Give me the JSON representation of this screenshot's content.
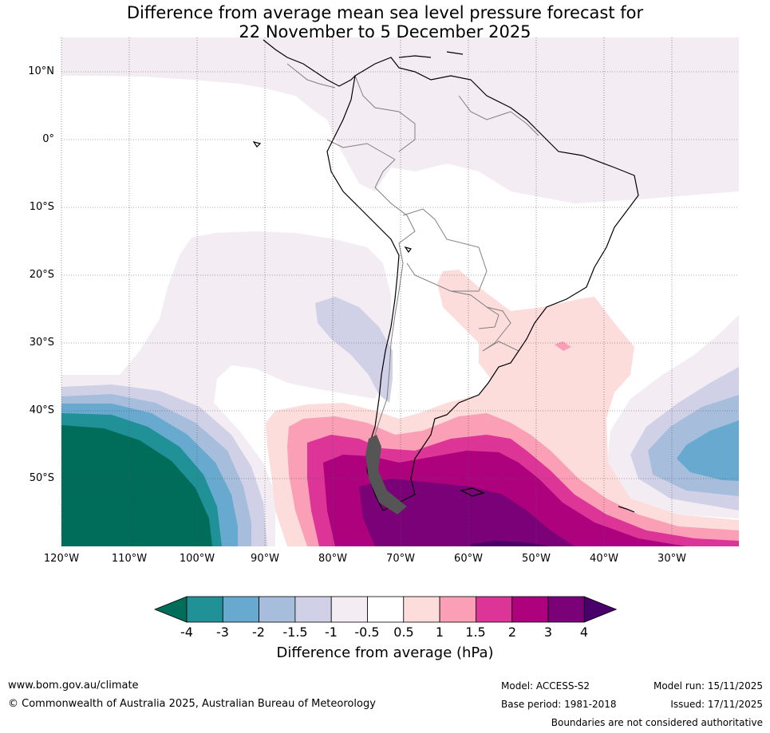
{
  "title": {
    "line1": "Difference from average mean sea level pressure forecast for",
    "line2": "22 November to 5 December 2025"
  },
  "map": {
    "latitude_labels": [
      "10°N",
      "0°",
      "10°S",
      "20°S",
      "30°S",
      "40°S",
      "50°S"
    ],
    "longitude_labels": [
      "120°W",
      "110°W",
      "100°W",
      "90°W",
      "80°W",
      "70°W",
      "60°W",
      "50°W",
      "40°W",
      "30°W"
    ]
  },
  "colorbar": {
    "title": "Difference from average (hPa)",
    "ticks": [
      "-4",
      "-3",
      "-2",
      "-1.5",
      "-1",
      "-0.5",
      "0.5",
      "1",
      "1.5",
      "2",
      "3",
      "4"
    ],
    "colors": [
      "#006d5b",
      "#1f9197",
      "#67a9cf",
      "#a6bddb",
      "#d0d1e6",
      "#f3ecf3",
      "#ffffff",
      "#fddcdc",
      "#fa9fb5",
      "#dd3497",
      "#ae017e",
      "#7a0177",
      "#49006a"
    ]
  },
  "footer": {
    "website": "www.bom.gov.au/climate",
    "copyright": "© Commonwealth of Australia 2025, Australian Bureau of Meteorology",
    "model": "Model: ACCESS-S2",
    "base_period": "Base period: 1981-2018",
    "model_run": "Model run: 15/11/2025",
    "issued": "Issued: 17/11/2025",
    "disclaimer": "Boundaries are not considered authoritative"
  }
}
